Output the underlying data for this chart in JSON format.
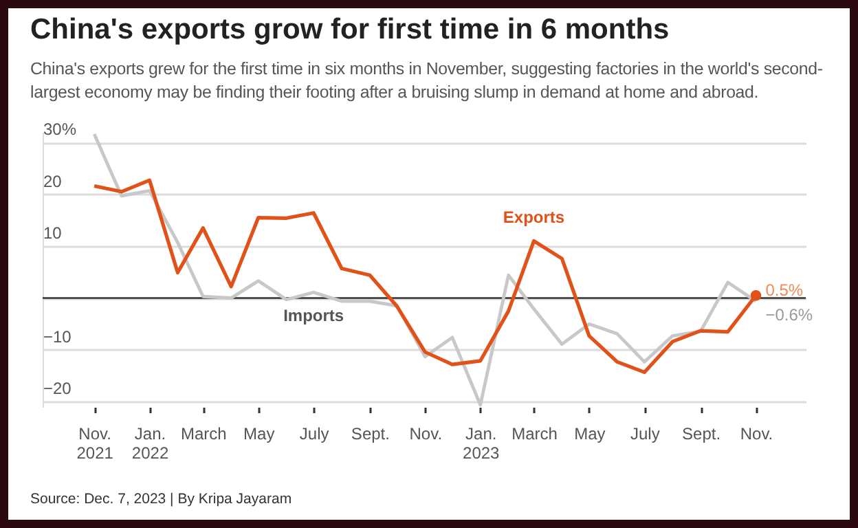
{
  "chart_data": {
    "type": "line",
    "title": "China's exports grow for first time in 6 months",
    "subtitle": "China's exports grew for the first time in six months in November, suggesting factories in the world's second-largest economy may be finding their footing after a bruising slump in demand at home and abroad.",
    "annotations": [
      "Source: Dec. 7, 2023 | By Kripa Jayaram"
    ],
    "x": [
      "2021-11",
      "2021-12",
      "2022-01",
      "2022-02",
      "2022-03",
      "2022-04",
      "2022-05",
      "2022-06",
      "2022-07",
      "2022-08",
      "2022-09",
      "2022-10",
      "2022-11",
      "2022-12",
      "2023-01",
      "2023-02",
      "2023-03",
      "2023-04",
      "2023-05",
      "2023-06",
      "2023-07",
      "2023-08",
      "2023-09",
      "2023-10",
      "2023-11"
    ],
    "series": [
      {
        "name": "Imports",
        "color": "#c8c8c8",
        "values": [
          31.6,
          19.7,
          20.7,
          10.7,
          0.3,
          0,
          3.3,
          -0.3,
          1.1,
          -0.6,
          -0.6,
          -1.5,
          -11.3,
          -7.6,
          -20.6,
          4.4,
          -2.1,
          -8.9,
          -5.0,
          -6.9,
          -12.3,
          -7.3,
          -6.4,
          3.0,
          -0.6
        ],
        "value_labels": [
          null,
          null,
          null,
          null,
          null,
          null,
          null,
          null,
          null,
          null,
          null,
          null,
          null,
          null,
          null,
          null,
          null,
          null,
          null,
          null,
          null,
          null,
          null,
          null,
          "−0.6%"
        ]
      },
      {
        "name": "Exports",
        "color": "#e0521a",
        "values": [
          21.6,
          20.5,
          22.7,
          4.9,
          13.5,
          2.2,
          15.5,
          15.4,
          16.4,
          5.7,
          4.4,
          -1.6,
          -10.4,
          -12.8,
          -12.1,
          -2.5,
          11.0,
          7.6,
          -7.3,
          -12.3,
          -14.3,
          -8.4,
          -6.3,
          -6.5,
          0.5
        ],
        "value_labels": [
          null,
          null,
          null,
          null,
          null,
          null,
          null,
          null,
          null,
          null,
          null,
          null,
          null,
          null,
          null,
          null,
          null,
          null,
          null,
          null,
          null,
          null,
          null,
          null,
          "0.5%"
        ]
      }
    ],
    "xlim": [
      "2021-09-05",
      "2023-12-26"
    ],
    "xticks": [
      {
        "value": "2021-11",
        "label": "Nov.\n2021"
      },
      {
        "value": "2022-01",
        "label": "Jan.\n2022"
      },
      {
        "value": "2022-03",
        "label": "March"
      },
      {
        "value": "2022-05",
        "label": "May"
      },
      {
        "value": "2022-07",
        "label": "July"
      },
      {
        "value": "2022-09",
        "label": "Sept."
      },
      {
        "value": "2022-11",
        "label": "Nov."
      },
      {
        "value": "2023-01",
        "label": "Jan.\n2023"
      },
      {
        "value": "2023-03",
        "label": "March"
      },
      {
        "value": "2023-05",
        "label": "May"
      },
      {
        "value": "2023-07",
        "label": "July"
      },
      {
        "value": "2023-09",
        "label": "Sept."
      },
      {
        "value": "2023-11",
        "label": "Nov."
      }
    ],
    "ylim": [
      -21,
      32
    ],
    "yticks": [
      {
        "value": 30,
        "label": "30%"
      },
      {
        "value": 20,
        "label": "20"
      },
      {
        "value": 10,
        "label": "10"
      },
      {
        "value": 0,
        "label": null
      },
      {
        "value": -10,
        "label": "−10"
      },
      {
        "value": -20,
        "label": "−20"
      }
    ],
    "grid": "y",
    "ref_lines": [
      {
        "axis": "y",
        "value": 0,
        "color": "#333333"
      }
    ]
  }
}
